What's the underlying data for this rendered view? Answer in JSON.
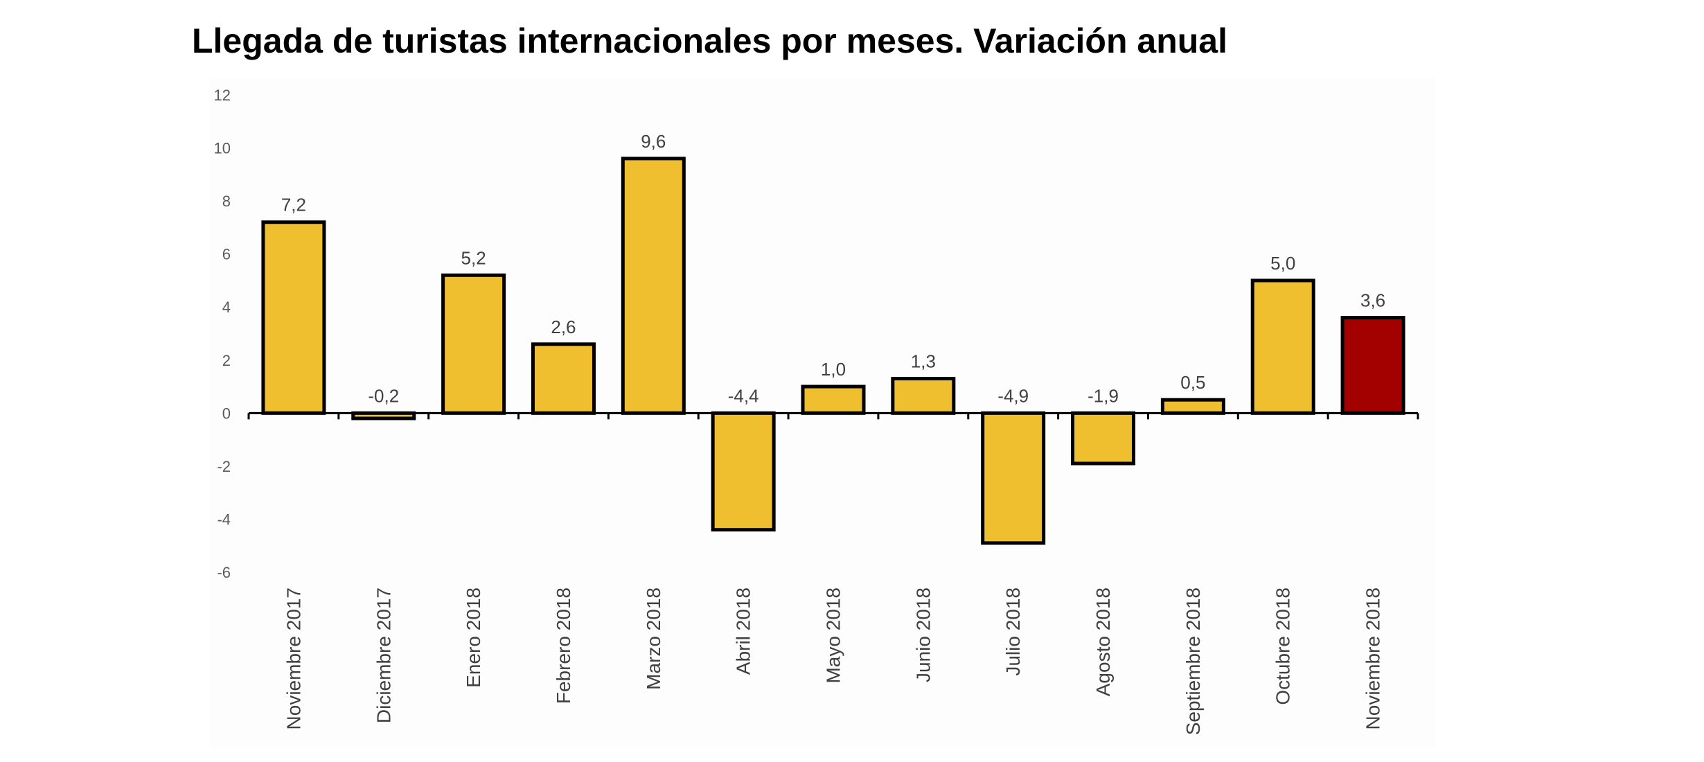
{
  "chart_data": {
    "type": "bar",
    "title": "Llegada de turistas internacionales por meses. Variación anual",
    "xlabel": "",
    "ylabel": "",
    "ylim": [
      -6,
      12
    ],
    "yticks": [
      "12",
      "10",
      "8",
      "6",
      "4",
      "2",
      "0",
      "-2",
      "-4",
      "-6"
    ],
    "categories": [
      "Noviembre 2017",
      "Diciembre 2017",
      "Enero 2018",
      "Febrero 2018",
      "Marzo 2018",
      "Abril 2018",
      "Mayo 2018",
      "Junio 2018",
      "Julio 2018",
      "Agosto 2018",
      "Septiembre 2018",
      "Octubre 2018",
      "Noviembre 2018"
    ],
    "values": [
      7.2,
      -0.2,
      5.2,
      2.6,
      9.6,
      -4.4,
      1.0,
      1.3,
      -4.9,
      -1.9,
      0.5,
      5.0,
      3.6
    ],
    "data_labels": [
      "7,2",
      "-0,2",
      "5,2",
      "2,6",
      "9,6",
      "-4,4",
      "1,0",
      "1,3",
      "-4,9",
      "-1,9",
      "0,5",
      "5,0",
      "3,6"
    ],
    "grid": false,
    "legend": "none",
    "colors": {
      "bar": "#EFBF2F",
      "highlight_bar": "#A30000",
      "bar_outline": "#000000"
    },
    "highlight_index": 12
  }
}
